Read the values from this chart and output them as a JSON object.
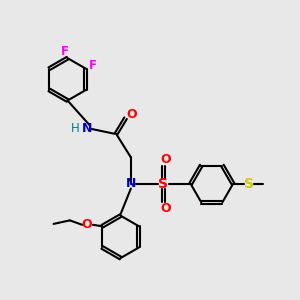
{
  "background_color": "#e8e8e8",
  "bond_color": "#000000",
  "atom_colors": {
    "N": "#0000cc",
    "O": "#ff0000",
    "F": "#ff00ff",
    "S_sulfonyl": "#ff0000",
    "S_thio": "#cccc00",
    "H": "#008080",
    "C": "#000000"
  },
  "figsize": [
    3.0,
    3.0
  ],
  "dpi": 100
}
